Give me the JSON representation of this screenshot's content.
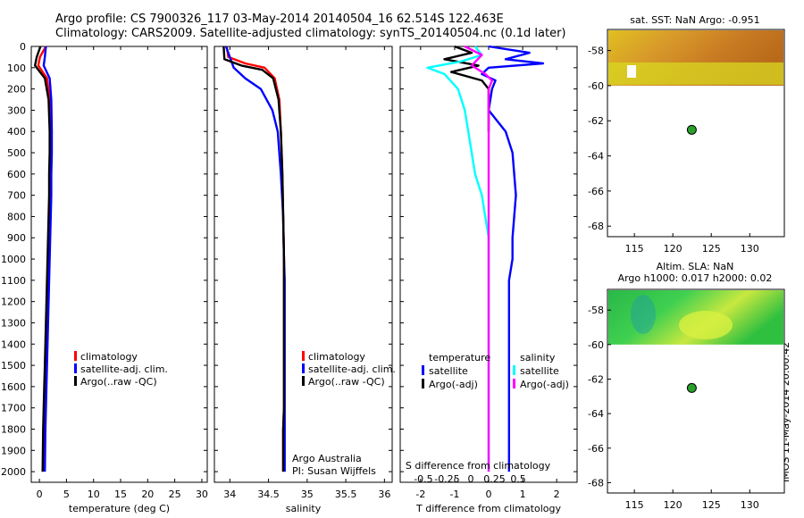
{
  "title": {
    "line1": "Argo profile: CS 7900326_117 03-May-2014 20140504_16 62.514S 122.463E",
    "line2": "Climatology: CARS2009. Satellite-adjusted climatology: synTS_20140504.nc (0.1d later)"
  },
  "credit": {
    "line1": "Argo Australia",
    "line2": "PI: Susan Wijffels",
    "side_stamp": "IMOS 11-May-2014 20:00:42"
  },
  "maps": {
    "sst_title": "sat. SST: NaN Argo: -0.951",
    "sla_title1": "Altim. SLA: NaN",
    "sla_title2": "Argo h1000: 0.017 h2000: 0.02",
    "lon_ticks": [
      "115",
      "120",
      "125",
      "130"
    ],
    "lat_ticks": [
      "-58",
      "-60",
      "-62",
      "-64",
      "-66",
      "-68"
    ],
    "argo_position": {
      "lon": 122.463,
      "lat": -62.514
    },
    "colors": {
      "marker": "#2aa02a",
      "sst_warm": "#e8a020",
      "sla_green": "#30c840"
    }
  },
  "chart_data": [
    {
      "type": "line",
      "name": "temperature",
      "xlabel": "temperature (deg C)",
      "ylabel": "",
      "xlim": [
        -1.5,
        31
      ],
      "ylim": [
        2050,
        0
      ],
      "xticks": [
        0,
        5,
        10,
        15,
        20,
        25,
        30
      ],
      "xtick_labels": [
        "0",
        "5",
        "10",
        "15",
        "20",
        "25",
        "30"
      ],
      "yticks": [
        0,
        100,
        200,
        300,
        400,
        500,
        600,
        700,
        800,
        900,
        1000,
        1100,
        1200,
        1300,
        1400,
        1500,
        1600,
        1700,
        1800,
        1900,
        2000
      ],
      "legend": [
        "climatology",
        "satellite-adj. clim.",
        "Argo(..raw -QC)"
      ],
      "legend_placement": "lower-left",
      "series": [
        {
          "name": "climatology",
          "color": "#ff0000",
          "x": [
            1.2,
            0.1,
            -0.2,
            1.4,
            1.9,
            2.0,
            2.0,
            1.9,
            1.9,
            1.8,
            1.7,
            1.6,
            1.5,
            1.4,
            1.3,
            1.2,
            1.1,
            1.0,
            0.9,
            0.8,
            0.7
          ],
          "y": [
            0,
            50,
            90,
            150,
            250,
            400,
            500,
            600,
            700,
            800,
            900,
            1000,
            1100,
            1200,
            1300,
            1400,
            1500,
            1600,
            1700,
            1800,
            2000
          ]
        },
        {
          "name": "satellite-adj. clim.",
          "color": "#0000ff",
          "x": [
            1.2,
            1.0,
            0.8,
            1.9,
            2.2,
            2.3,
            2.3,
            2.2,
            2.2,
            2.1,
            2.0,
            1.9,
            1.8,
            1.7,
            1.6,
            1.5,
            1.4,
            1.3,
            1.2,
            1.1,
            1.0
          ],
          "y": [
            0,
            50,
            90,
            150,
            250,
            400,
            500,
            600,
            700,
            800,
            900,
            1000,
            1100,
            1200,
            1300,
            1400,
            1500,
            1600,
            1700,
            1800,
            2000
          ]
        },
        {
          "name": "Argo(..raw -QC)",
          "color": "#000000",
          "x": [
            0.2,
            -0.5,
            -0.8,
            1.0,
            1.7,
            1.9,
            1.9,
            1.8,
            1.8,
            1.7,
            1.6,
            1.5,
            1.4,
            1.3,
            1.2,
            1.1,
            1.0,
            0.9,
            0.8,
            0.7,
            0.6
          ],
          "y": [
            0,
            50,
            90,
            150,
            250,
            400,
            500,
            600,
            700,
            800,
            900,
            1000,
            1100,
            1200,
            1300,
            1400,
            1500,
            1600,
            1700,
            1800,
            2000
          ]
        }
      ]
    },
    {
      "type": "line",
      "name": "salinity",
      "xlabel": "salinity",
      "ylabel": "",
      "xlim": [
        33.8,
        36.1
      ],
      "ylim": [
        2050,
        0
      ],
      "xticks": [
        34,
        34.5,
        35,
        35.5,
        36
      ],
      "xtick_labels": [
        "34",
        "34.5",
        "35",
        "35.5",
        "36"
      ],
      "legend": [
        "climatology",
        "satellite-adj. clim.",
        "Argo(..raw -QC)"
      ],
      "legend_placement": "lower-right",
      "series": [
        {
          "name": "climatology",
          "color": "#ff0000",
          "x": [
            33.96,
            33.98,
            34.2,
            34.45,
            34.58,
            34.64,
            34.66,
            34.68,
            34.69,
            34.7,
            34.7,
            34.7,
            34.7,
            34.7,
            34.7,
            34.7,
            34.7,
            34.69,
            34.69
          ],
          "y": [
            0,
            50,
            80,
            100,
            150,
            250,
            400,
            600,
            800,
            1000,
            1100,
            1200,
            1300,
            1400,
            1500,
            1600,
            1700,
            1800,
            2000
          ]
        },
        {
          "name": "satellite-adj. clim.",
          "color": "#0000ff",
          "x": [
            33.95,
            34.0,
            34.05,
            34.2,
            34.4,
            34.55,
            34.62,
            34.66,
            34.69,
            34.7,
            34.71,
            34.71,
            34.71,
            34.71,
            34.71,
            34.71,
            34.71,
            34.71,
            34.71
          ],
          "y": [
            0,
            50,
            100,
            150,
            200,
            300,
            400,
            600,
            800,
            1000,
            1100,
            1200,
            1300,
            1400,
            1500,
            1600,
            1700,
            1800,
            2000
          ]
        },
        {
          "name": "Argo(..raw -QC)",
          "color": "#000000",
          "x": [
            33.92,
            33.93,
            34.15,
            34.42,
            34.56,
            34.63,
            34.66,
            34.68,
            34.69,
            34.7,
            34.7,
            34.7,
            34.7,
            34.7,
            34.7,
            34.7,
            34.7,
            34.69,
            34.69
          ],
          "y": [
            0,
            60,
            90,
            110,
            150,
            250,
            400,
            600,
            800,
            1000,
            1100,
            1200,
            1300,
            1400,
            1500,
            1600,
            1700,
            1800,
            2000
          ]
        }
      ]
    },
    {
      "type": "line",
      "name": "difference",
      "xlabel": "T difference from climatology",
      "xlabel_top": "S difference from climatology",
      "xlim": [
        -2.6,
        2.6
      ],
      "ylim": [
        2050,
        0
      ],
      "xticks": [
        -2,
        -1,
        0,
        1,
        2
      ],
      "xtick_labels": [
        "-2",
        "-1",
        "0",
        "1",
        "2"
      ],
      "s_ticks": [
        -0.5,
        -0.25,
        0,
        0.25,
        0.5
      ],
      "s_tick_labels": [
        "-0.5",
        "-0.25",
        "0",
        "0.25",
        "0.5"
      ],
      "legend_groups": [
        {
          "heading": "temperature",
          "entries": [
            "satellite",
            "Argo(-adj)"
          ]
        },
        {
          "heading": "salinity",
          "entries": [
            "satellite",
            "Argo(-adj)"
          ]
        }
      ],
      "legend_placement": "lower",
      "series": [
        {
          "name": "temperature satellite",
          "color": "#0000ff",
          "x": [
            0.0,
            1.2,
            0.5,
            1.6,
            0.0,
            -0.2,
            0.2,
            0.1,
            0.0,
            0.5,
            0.7,
            0.8,
            0.7,
            0.7,
            0.6,
            0.6,
            0.6,
            0.6,
            0.6,
            0.6,
            0.6,
            0.6,
            0.6
          ],
          "y": [
            0,
            30,
            60,
            80,
            100,
            130,
            160,
            200,
            300,
            400,
            500,
            700,
            900,
            1000,
            1100,
            1200,
            1300,
            1400,
            1500,
            1600,
            1700,
            1800,
            2000
          ]
        },
        {
          "name": "temperature Argo(-adj)",
          "color": "#000000",
          "x": [
            -1.0,
            -0.5,
            -1.3,
            -0.3,
            -1.1,
            -0.2,
            0.0,
            0.0,
            0.0
          ],
          "y": [
            0,
            30,
            60,
            90,
            120,
            160,
            200,
            300,
            400
          ]
        },
        {
          "name": "salinity satellite",
          "color": "#00ffff",
          "x": [
            -0.4,
            -0.2,
            -0.8,
            -1.8,
            -1.3,
            -0.9,
            -0.7,
            -0.6,
            -0.5,
            -0.4,
            -0.2,
            -0.1,
            0.0,
            0.0,
            0.0,
            0.0,
            0.0,
            0.0,
            0.0,
            0.0,
            0.0
          ],
          "y": [
            0,
            40,
            70,
            100,
            130,
            200,
            300,
            400,
            500,
            600,
            700,
            800,
            900,
            1000,
            1100,
            1200,
            1300,
            1400,
            1500,
            1700,
            2000
          ]
        },
        {
          "name": "salinity Argo(-adj)",
          "color": "#ff00ff",
          "x": [
            -0.7,
            -0.2,
            -0.5,
            -0.1,
            0.1,
            0.0,
            0.0,
            0.0,
            0.0,
            0.0,
            0.0,
            0.0,
            0.0
          ],
          "y": [
            0,
            40,
            90,
            130,
            160,
            200,
            300,
            400,
            500,
            700,
            900,
            1200,
            2000
          ]
        }
      ]
    }
  ]
}
